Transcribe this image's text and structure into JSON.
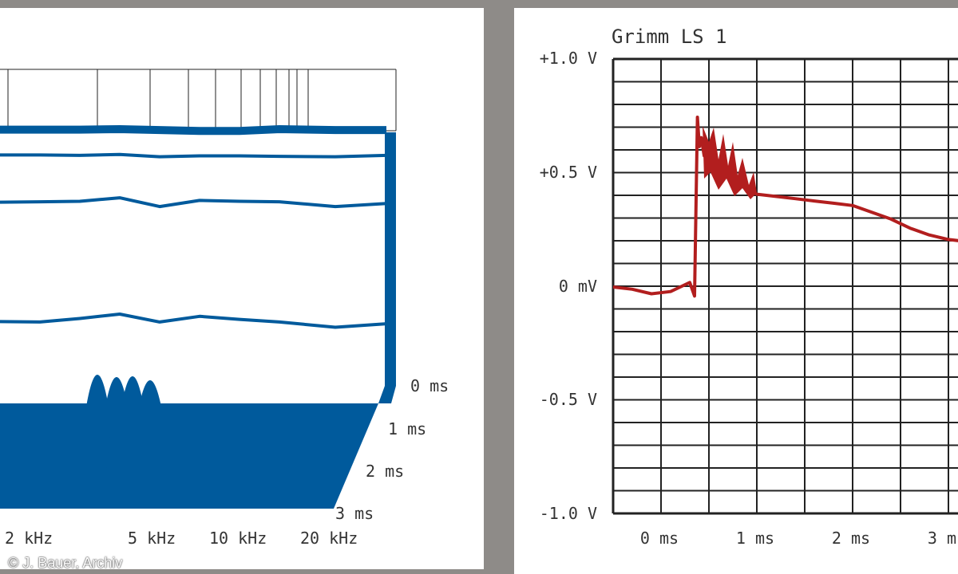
{
  "credit": "© J. Bauer, Archiv",
  "colors": {
    "waterfall": "#005a9c",
    "trace": "#b21e1e",
    "grid": "#222222",
    "background": "#8e8b88"
  },
  "chart_data": [
    {
      "type": "area",
      "title": "",
      "x_ticks": [
        "2 kHz",
        "5 kHz",
        "10 kHz",
        "20 kHz"
      ],
      "z_ticks": [
        "0 ms",
        "1 ms",
        "2 ms",
        "3 ms"
      ],
      "series": [
        {
          "time_ms": 0.0,
          "values": [
            -1,
            -1,
            -1,
            0,
            -2,
            -4,
            -4,
            0,
            -2,
            -2
          ]
        },
        {
          "time_ms": 0.5,
          "values": [
            -8,
            -8,
            -9,
            -7,
            -12,
            -10,
            -10,
            -11,
            -12,
            -9
          ]
        },
        {
          "time_ms": 1.0,
          "values": [
            -32,
            -31,
            -30,
            -22,
            -42,
            -28,
            -30,
            -31,
            -42,
            -35
          ]
        },
        {
          "time_ms": 2.0,
          "values": [
            -57,
            -58,
            -50,
            -40,
            -58,
            -45,
            -52,
            -58,
            -70,
            -62
          ]
        }
      ]
    },
    {
      "type": "line",
      "title": "Grimm LS 1",
      "xlabel": "",
      "ylabel": "",
      "x_ticks": [
        "0 ms",
        "1 ms",
        "2 ms",
        "3 ms"
      ],
      "y_ticks": [
        "+1.0 V",
        "+0.5 V",
        "0 mV",
        "-0.5 V",
        "-1.0 V"
      ],
      "xlim": [
        -0.5,
        3.5
      ],
      "ylim": [
        -1.0,
        1.0
      ],
      "grid": true,
      "series": [
        {
          "x": [
            -0.5,
            -0.3,
            -0.1,
            0.1,
            0.2,
            0.3,
            0.35,
            0.38,
            0.4,
            0.42,
            0.45,
            0.5,
            0.6,
            0.7,
            0.8,
            0.9,
            1.0,
            1.2,
            1.4,
            1.6,
            1.8,
            2.0,
            2.2,
            2.4,
            2.6,
            2.8,
            3.0,
            3.2,
            3.4,
            3.5
          ],
          "y": [
            0.0,
            -0.01,
            -0.03,
            -0.02,
            0.0,
            0.02,
            -0.04,
            0.75,
            0.62,
            0.66,
            0.58,
            0.62,
            0.55,
            0.5,
            0.46,
            0.43,
            0.41,
            0.4,
            0.39,
            0.38,
            0.37,
            0.36,
            0.33,
            0.3,
            0.26,
            0.23,
            0.21,
            0.2,
            0.18,
            0.17
          ]
        }
      ]
    }
  ]
}
